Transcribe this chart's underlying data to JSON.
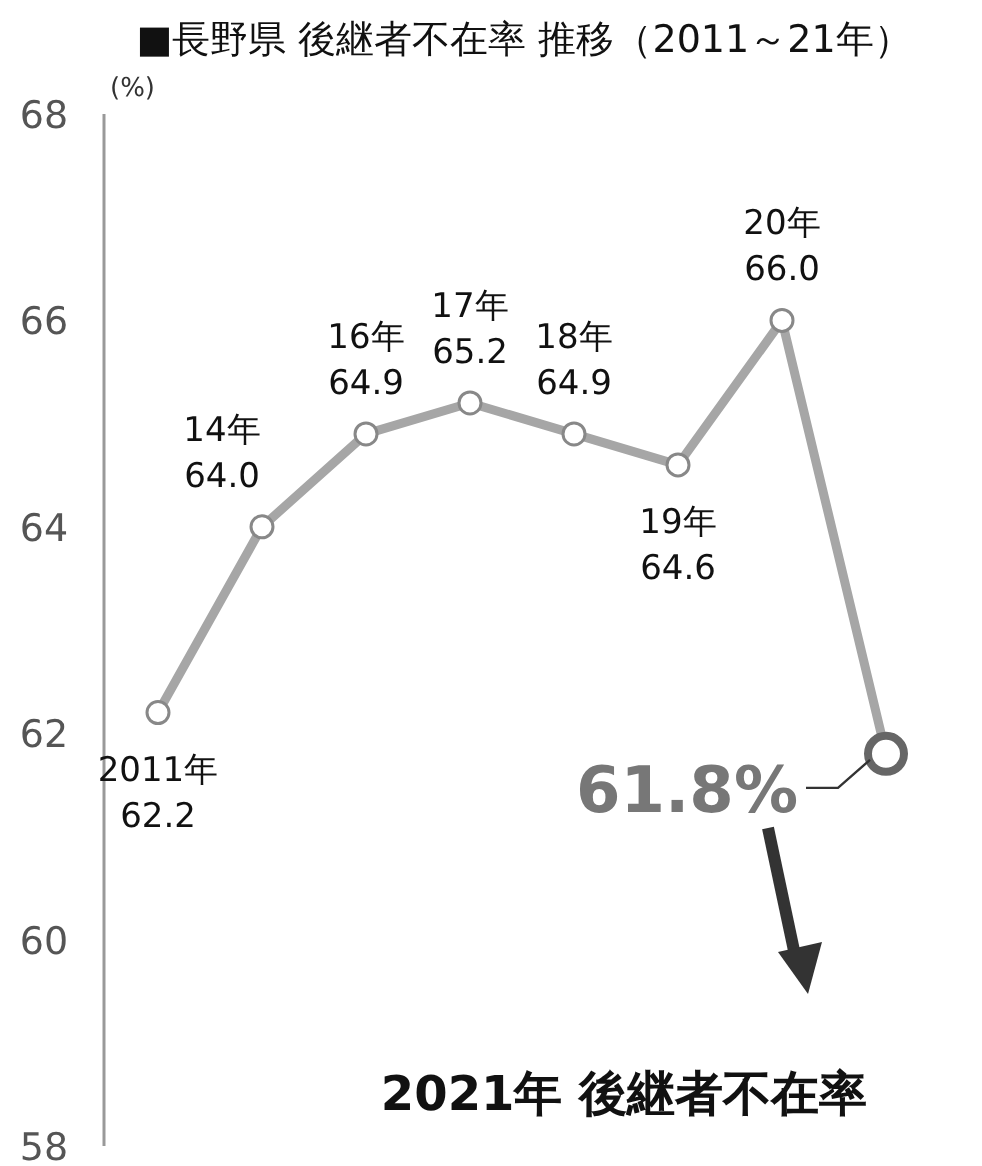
{
  "chart_data": {
    "type": "line",
    "title": "■長野県 後継者不在率 推移（2011～21年）",
    "ylabel": "(%)",
    "categories": [
      "2011年",
      "14年",
      "16年",
      "17年",
      "18年",
      "19年",
      "20年",
      null
    ],
    "series": [
      {
        "color": "#a6a6a6",
        "values": [
          62.2,
          64.0,
          64.9,
          65.2,
          64.9,
          64.6,
          66.0,
          61.8
        ],
        "value_labels": [
          "62.2",
          "64.0",
          "64.9",
          "65.2",
          "64.9",
          "64.6",
          "66.0",
          "61.8%"
        ]
      }
    ],
    "ylim": [
      58,
      68
    ],
    "yticks": [
      58,
      60,
      62,
      64,
      66,
      68
    ],
    "grid": false,
    "marker": "circle",
    "line_style": "solid",
    "annotations": [
      "2021年 後継者不在率"
    ]
  }
}
